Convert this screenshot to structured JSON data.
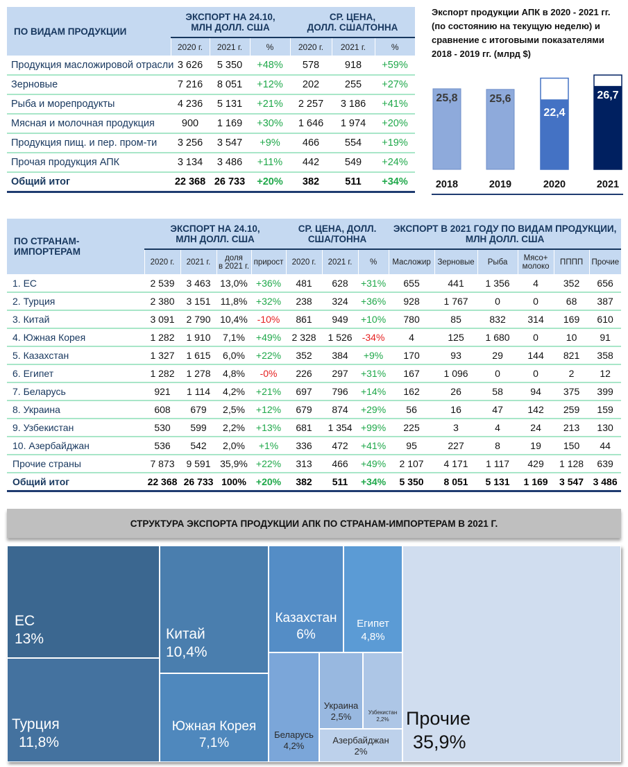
{
  "table_products": {
    "row_header": "ПО ВИДАМ ПРОДУКЦИИ",
    "group_export": "ЭКСПОРТ НА 24.10, МЛН ДОЛЛ. США",
    "group_export_l1": "ЭКСПОРТ НА 24.10,",
    "group_export_l2": "МЛН ДОЛЛ. США",
    "group_price_l1": "СР. ЦЕНА,",
    "group_price_l2": "ДОЛЛ. США/ТОННА",
    "sub": [
      "2020 г.",
      "2021 г.",
      "%",
      "2020 г.",
      "2021 г.",
      "%"
    ],
    "rows": [
      {
        "name": "Продукция масложировой отрасли",
        "e2020": "3 626",
        "e2021": "5 350",
        "ep": "+48%",
        "p2020": "578",
        "p2021": "918",
        "pp": "+59%"
      },
      {
        "name": "Зерновые",
        "e2020": "7 216",
        "e2021": "8 051",
        "ep": "+12%",
        "p2020": "202",
        "p2021": "255",
        "pp": "+27%"
      },
      {
        "name": "Рыба и морепродукты",
        "e2020": "4 236",
        "e2021": "5 131",
        "ep": "+21%",
        "p2020": "2 257",
        "p2021": "3 186",
        "pp": "+41%"
      },
      {
        "name": "Мясная и молочная продукция",
        "e2020": "900",
        "e2021": "1 169",
        "ep": "+30%",
        "p2020": "1 646",
        "p2021": "1 974",
        "pp": "+20%"
      },
      {
        "name": "Продукция пищ. и пер. пром-ти",
        "e2020": "3 256",
        "e2021": "3 547",
        "ep": "+9%",
        "p2020": "466",
        "p2021": "554",
        "pp": "+19%"
      },
      {
        "name": "Прочая продукция АПК",
        "e2020": "3 134",
        "e2021": "3 486",
        "ep": "+11%",
        "p2020": "442",
        "p2021": "549",
        "pp": "+24%"
      }
    ],
    "total": {
      "name": "Общий итог",
      "e2020": "22 368",
      "e2021": "26 733",
      "ep": "+20%",
      "p2020": "382",
      "p2021": "511",
      "pp": "+34%"
    }
  },
  "bar_chart": {
    "title": "Экспорт продукции АПК в 2020 - 2021 гг. (по состоянию на текущую неделю) и сравнение с итоговыми показателями 2018 - 2019 гг. (млрд $)",
    "colors": {
      "y2018": "#8eaadb",
      "y2019": "#8eaadb",
      "y2020": "#4472c4",
      "y2021": "#002060"
    }
  },
  "chart_data": {
    "type": "bar",
    "title": "Экспорт продукции АПК в 2020 - 2021 гг. (по состоянию на текущую неделю) и сравнение с итоговыми показателями 2018 - 2019 гг. (млрд $)",
    "categories": [
      "2018",
      "2019",
      "2020",
      "2021"
    ],
    "values": [
      25.8,
      25.6,
      22.4,
      26.7
    ],
    "labels": [
      "25,8",
      "25,6",
      "22,4",
      "26,7"
    ],
    "xlabel": "",
    "ylabel": "",
    "ylim": [
      0,
      30
    ]
  },
  "table_countries": {
    "row_header": "ПО СТРАНАМ-ИМПОРТЕРАМ",
    "group_export_l1": "ЭКСПОРТ НА 24.10,",
    "group_export_l2": "МЛН ДОЛЛ. США",
    "group_price_l1": "СР. ЦЕНА, ДОЛЛ.",
    "group_price_l2": "США/ТОННА",
    "group_types_l1": "ЭКСПОРТ В 2021 ГОДУ ПО ВИДАМ ПРОДУКЦИИ,",
    "group_types_l2": "МЛН ДОЛЛ. США",
    "sub": [
      "2020 г.",
      "2021 г.",
      "доля",
      "в 2021 г.",
      "прирост",
      "2020 г.",
      "2021 г.",
      "%",
      "Масложир",
      "Зерновые",
      "Рыба",
      "Мясо+",
      "молоко",
      "ПППП",
      "Прочие"
    ],
    "rows": [
      {
        "name": "1. ЕС",
        "e2020": "2 539",
        "e2021": "3 463",
        "share": "13,0%",
        "growth": "+36%",
        "p2020": "481",
        "p2021": "628",
        "pp": "+31%",
        "oil": "655",
        "grain": "441",
        "fish": "1 356",
        "meat": "4",
        "pppp": "352",
        "other": "656"
      },
      {
        "name": "2. Турция",
        "e2020": "2 380",
        "e2021": "3 151",
        "share": "11,8%",
        "growth": "+32%",
        "p2020": "238",
        "p2021": "324",
        "pp": "+36%",
        "oil": "928",
        "grain": "1 767",
        "fish": "0",
        "meat": "0",
        "pppp": "68",
        "other": "387"
      },
      {
        "name": "3. Китай",
        "e2020": "3 091",
        "e2021": "2 790",
        "share": "10,4%",
        "growth": "-10%",
        "p2020": "861",
        "p2021": "949",
        "pp": "+10%",
        "oil": "780",
        "grain": "85",
        "fish": "832",
        "meat": "314",
        "pppp": "169",
        "other": "610"
      },
      {
        "name": "4. Южная Корея",
        "e2020": "1 282",
        "e2021": "1 910",
        "share": "7,1%",
        "growth": "+49%",
        "p2020": "2 328",
        "p2021": "1 526",
        "pp": "-34%",
        "oil": "4",
        "grain": "125",
        "fish": "1 680",
        "meat": "0",
        "pppp": "10",
        "other": "91"
      },
      {
        "name": "5. Казахстан",
        "e2020": "1 327",
        "e2021": "1 615",
        "share": "6,0%",
        "growth": "+22%",
        "p2020": "352",
        "p2021": "384",
        "pp": "+9%",
        "oil": "170",
        "grain": "93",
        "fish": "29",
        "meat": "144",
        "pppp": "821",
        "other": "358"
      },
      {
        "name": "6. Египет",
        "e2020": "1 282",
        "e2021": "1 278",
        "share": "4,8%",
        "growth": "-0%",
        "p2020": "226",
        "p2021": "297",
        "pp": "+31%",
        "oil": "167",
        "grain": "1 096",
        "fish": "0",
        "meat": "0",
        "pppp": "2",
        "other": "12"
      },
      {
        "name": "7. Беларусь",
        "e2020": "921",
        "e2021": "1 114",
        "share": "4,2%",
        "growth": "+21%",
        "p2020": "697",
        "p2021": "796",
        "pp": "+14%",
        "oil": "162",
        "grain": "26",
        "fish": "58",
        "meat": "94",
        "pppp": "375",
        "other": "399"
      },
      {
        "name": "8. Украина",
        "e2020": "608",
        "e2021": "679",
        "share": "2,5%",
        "growth": "+12%",
        "p2020": "679",
        "p2021": "874",
        "pp": "+29%",
        "oil": "56",
        "grain": "16",
        "fish": "47",
        "meat": "142",
        "pppp": "259",
        "other": "159"
      },
      {
        "name": "9. Узбекистан",
        "e2020": "530",
        "e2021": "599",
        "share": "2,2%",
        "growth": "+13%",
        "p2020": "681",
        "p2021": "1 354",
        "pp": "+99%",
        "oil": "225",
        "grain": "3",
        "fish": "4",
        "meat": "24",
        "pppp": "213",
        "other": "130"
      },
      {
        "name": "10. Азербайджан",
        "e2020": "536",
        "e2021": "542",
        "share": "2,0%",
        "growth": "+1%",
        "p2020": "336",
        "p2021": "472",
        "pp": "+41%",
        "oil": "95",
        "grain": "227",
        "fish": "8",
        "meat": "19",
        "pppp": "150",
        "other": "44"
      },
      {
        "name": "Прочие страны",
        "e2020": "7 873",
        "e2021": "9 591",
        "share": "35,9%",
        "growth": "+22%",
        "p2020": "313",
        "p2021": "466",
        "pp": "+49%",
        "oil": "2 107",
        "grain": "4 171",
        "fish": "1 117",
        "meat": "429",
        "pppp": "1 128",
        "other": "639"
      }
    ],
    "total": {
      "name": "Общий итог",
      "e2020": "22 368",
      "e2021": "26 733",
      "share": "100%",
      "growth": "+20%",
      "p2020": "382",
      "p2021": "511",
      "pp": "+34%",
      "oil": "5 350",
      "grain": "8 051",
      "fish": "5 131",
      "meat": "1 169",
      "pppp": "3 547",
      "other": "3 486"
    }
  },
  "treemap": {
    "title": "СТРУКТУРА ЭКСПОРТА ПРОДУКЦИИ АПК ПО СТРАНАМ-ИМПОРТЕРАМ В 2021 Г.",
    "tiles": [
      {
        "name": "ЕС",
        "pct": "13%",
        "color": "#3b6790"
      },
      {
        "name": "Турция",
        "pct": "11,8%",
        "color": "#44729f"
      },
      {
        "name": "Китай",
        "pct": "10,4%",
        "color": "#4a7eae"
      },
      {
        "name": "Южная Корея",
        "pct": "7,1%",
        "color": "#4f88bd"
      },
      {
        "name": "Казахстан",
        "pct": "6%",
        "color": "#548dc6"
      },
      {
        "name": "Египет",
        "pct": "4,8%",
        "color": "#5b9bd5"
      },
      {
        "name": "Беларусь",
        "pct": "4,2%",
        "color": "#7ba6d9"
      },
      {
        "name": "Украина",
        "pct": "2,5%",
        "color": "#98b8e0"
      },
      {
        "name": "Узбекистан",
        "pct": "2,2%",
        "color": "#adc6e6"
      },
      {
        "name": "Азербайджан",
        "pct": "2%",
        "color": "#bdd1eb"
      },
      {
        "name": "Прочие",
        "pct": "35,9%",
        "color": "#d0ddef"
      }
    ]
  }
}
